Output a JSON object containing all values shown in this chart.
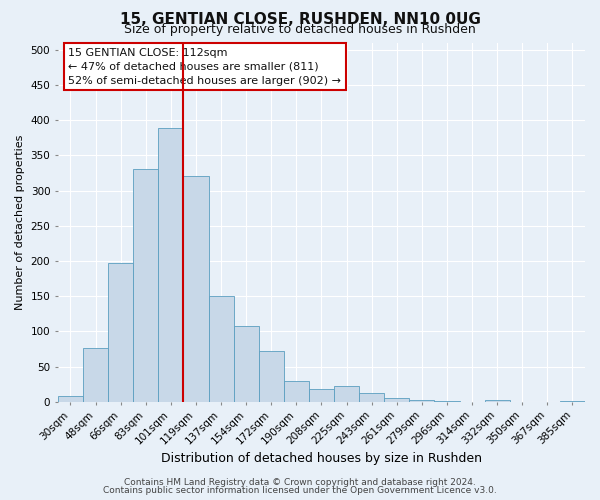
{
  "title": "15, GENTIAN CLOSE, RUSHDEN, NN10 0UG",
  "subtitle": "Size of property relative to detached houses in Rushden",
  "xlabel": "Distribution of detached houses by size in Rushden",
  "ylabel": "Number of detached properties",
  "bin_labels": [
    "30sqm",
    "48sqm",
    "66sqm",
    "83sqm",
    "101sqm",
    "119sqm",
    "137sqm",
    "154sqm",
    "172sqm",
    "190sqm",
    "208sqm",
    "225sqm",
    "243sqm",
    "261sqm",
    "279sqm",
    "296sqm",
    "314sqm",
    "332sqm",
    "350sqm",
    "367sqm",
    "385sqm"
  ],
  "bar_heights": [
    8,
    77,
    197,
    330,
    388,
    320,
    151,
    108,
    72,
    30,
    18,
    22,
    12,
    5,
    3,
    2,
    0,
    3,
    0,
    0,
    2
  ],
  "bar_color": "#c8d8e8",
  "bar_edge_color": "#5a9ec0",
  "vline_x_index": 4.5,
  "vline_color": "#cc0000",
  "ylim": [
    0,
    510
  ],
  "yticks": [
    0,
    50,
    100,
    150,
    200,
    250,
    300,
    350,
    400,
    450,
    500
  ],
  "annotation_title": "15 GENTIAN CLOSE: 112sqm",
  "annotation_line1": "← 47% of detached houses are smaller (811)",
  "annotation_line2": "52% of semi-detached houses are larger (902) →",
  "annotation_box_facecolor": "#ffffff",
  "annotation_box_edgecolor": "#cc0000",
  "footer1": "Contains HM Land Registry data © Crown copyright and database right 2024.",
  "footer2": "Contains public sector information licensed under the Open Government Licence v3.0.",
  "background_color": "#e8f0f8",
  "grid_color": "#ffffff",
  "title_fontsize": 11,
  "subtitle_fontsize": 9,
  "xlabel_fontsize": 9,
  "ylabel_fontsize": 8,
  "tick_fontsize": 7.5,
  "annotation_fontsize": 8,
  "footer_fontsize": 6.5
}
